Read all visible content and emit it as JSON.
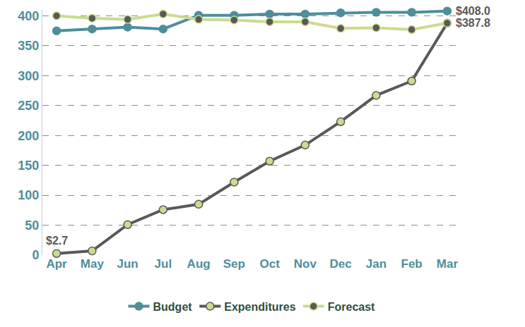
{
  "chart_data": {
    "type": "line",
    "categories": [
      "Apr",
      "May",
      "Jun",
      "Jul",
      "Aug",
      "Sep",
      "Oct",
      "Nov",
      "Dec",
      "Jan",
      "Feb",
      "Mar"
    ],
    "series": [
      {
        "name": "Budget",
        "color": "#4e8e9b",
        "marker": "circle",
        "line_style": "solid",
        "values": [
          375,
          378,
          381,
          378,
          401,
          401,
          403,
          403,
          405,
          406,
          406,
          408.0
        ],
        "value_labels": [
          null,
          null,
          null,
          null,
          null,
          null,
          null,
          null,
          null,
          null,
          null,
          "$408.0"
        ]
      },
      {
        "name": "Expenditures",
        "color": "#595959",
        "marker": "circle",
        "line_style": "solid",
        "values": [
          2.7,
          7,
          51,
          76,
          85,
          122,
          157,
          184,
          223,
          267,
          291,
          387.8
        ],
        "value_labels": [
          "$2.7",
          null,
          null,
          null,
          null,
          null,
          null,
          null,
          null,
          null,
          null,
          "$387.8"
        ]
      },
      {
        "name": "Forecast",
        "color": "#c9dd8e",
        "marker": "circle",
        "line_style": "solid",
        "values": [
          400,
          396,
          394,
          403,
          394,
          393,
          390,
          390,
          379,
          380,
          377,
          387.8
        ],
        "value_labels": [
          null,
          null,
          null,
          null,
          null,
          null,
          null,
          null,
          null,
          null,
          null,
          null
        ]
      }
    ],
    "ylim": [
      0,
      410
    ],
    "yticks": [
      0,
      50,
      100,
      150,
      200,
      250,
      300,
      350,
      400
    ],
    "grid": true,
    "legend": "bottom"
  }
}
